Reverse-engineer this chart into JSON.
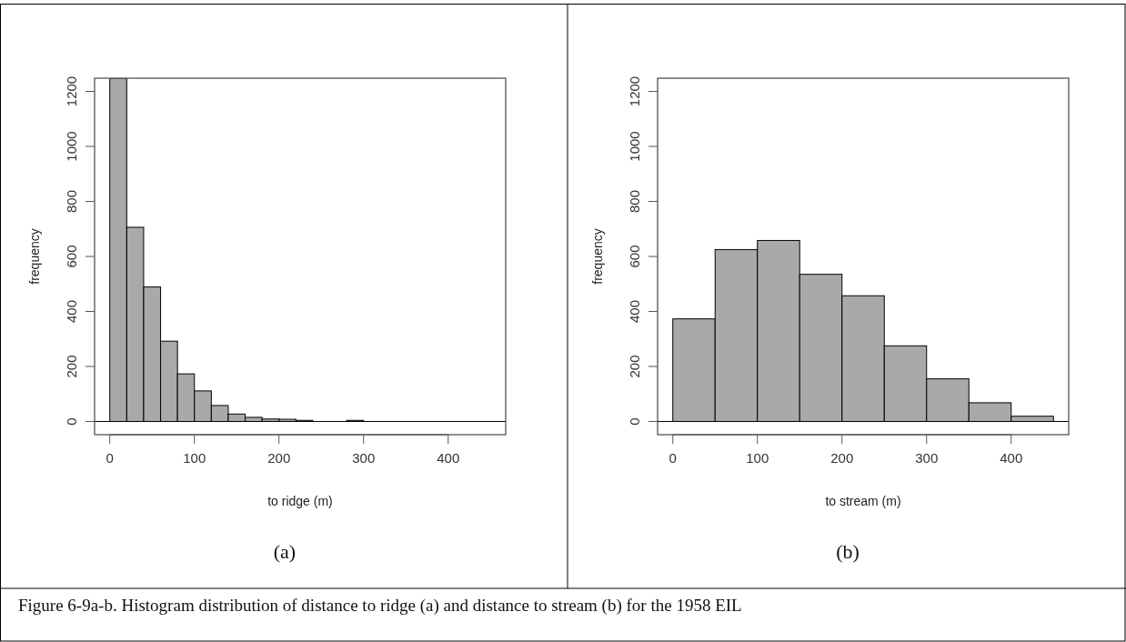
{
  "chart_data": [
    {
      "type": "histogram",
      "title": "(a)",
      "xlabel": "to ridge (m)",
      "ylabel": "frequency",
      "bins": [
        0,
        20,
        40,
        60,
        80,
        100,
        120,
        140,
        160,
        180,
        200,
        220,
        240,
        260,
        280,
        300
      ],
      "values": [
        1248,
        706,
        489,
        292,
        173,
        111,
        58,
        27,
        15,
        9,
        8,
        4,
        0,
        0,
        4
      ],
      "color": "#a9a9a9",
      "xlim": [
        -18,
        468
      ],
      "xticks": [
        0,
        100,
        200,
        300,
        400
      ],
      "ylim": [
        -48,
        1248
      ],
      "yticks": [
        0,
        200,
        400,
        600,
        800,
        1000,
        1200
      ],
      "ref_lines": [
        {
          "axis": "y",
          "value": 0,
          "color": "#000000"
        }
      ],
      "annotations": [
        "Figure 6-9a-b. Histogram distribution of distance to ridge (a) and distance to stream (b) for the 1958 EIL"
      ]
    },
    {
      "type": "histogram",
      "title": "(b)",
      "xlabel": "to stream (m)",
      "ylabel": "frequency",
      "bins": [
        0,
        50,
        100,
        150,
        200,
        250,
        300,
        350,
        400,
        450
      ],
      "values": [
        373,
        625,
        658,
        535,
        457,
        275,
        155,
        68,
        19
      ],
      "color": "#a9a9a9",
      "xlim": [
        -18,
        468
      ],
      "xticks": [
        0,
        100,
        200,
        300,
        400
      ],
      "ylim": [
        -48,
        1248
      ],
      "yticks": [
        0,
        200,
        400,
        600,
        800,
        1000,
        1200
      ],
      "ref_lines": [
        {
          "axis": "y",
          "value": 0,
          "color": "#000000"
        }
      ]
    }
  ]
}
